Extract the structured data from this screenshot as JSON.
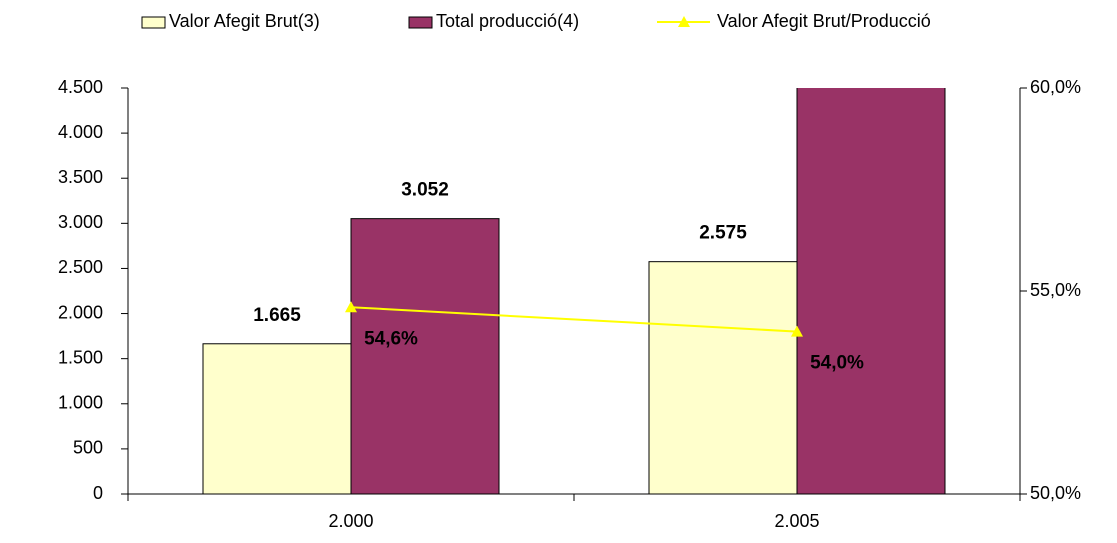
{
  "chart_data": {
    "type": "bar-line",
    "categories": [
      "2.000",
      "2.005"
    ],
    "series": [
      {
        "name": "Valor Afegit Brut(3)",
        "type": "bar",
        "color": "#ffffcc",
        "values": [
          1665,
          2575
        ],
        "value_labels": [
          "1.665",
          "2.575"
        ]
      },
      {
        "name": "Total producció(4)",
        "type": "bar",
        "color": "#993366",
        "values": [
          3052,
          4769
        ],
        "value_labels": [
          "3.052",
          null
        ]
      },
      {
        "name": "Valor Afegit Brut/Producció",
        "type": "line",
        "axis": "y2",
        "color": "#ffff00",
        "values": [
          54.6,
          54.0
        ],
        "value_labels": [
          "54,6%",
          "54,0%"
        ]
      }
    ],
    "ylim": [
      0,
      4500
    ],
    "yticks": [
      0,
      500,
      {
        "value": 1000,
        "label": "1.000"
      },
      {
        "value": 1500,
        "label": "1.500"
      },
      {
        "value": 2000,
        "label": "2.000"
      },
      {
        "value": 2500,
        "label": "2.500"
      },
      {
        "value": 3000,
        "label": "3.000"
      },
      {
        "value": 3500,
        "label": "3.500"
      },
      {
        "value": 4000,
        "label": "4.000"
      },
      {
        "value": 4500,
        "label": "4.500"
      }
    ],
    "y2lim": [
      50,
      60
    ],
    "y2ticks": [
      {
        "value": 50,
        "label": "50,0%"
      },
      {
        "value": 55,
        "label": "55,0%"
      },
      {
        "value": 60,
        "label": "60,0%"
      }
    ],
    "legend": "top"
  }
}
